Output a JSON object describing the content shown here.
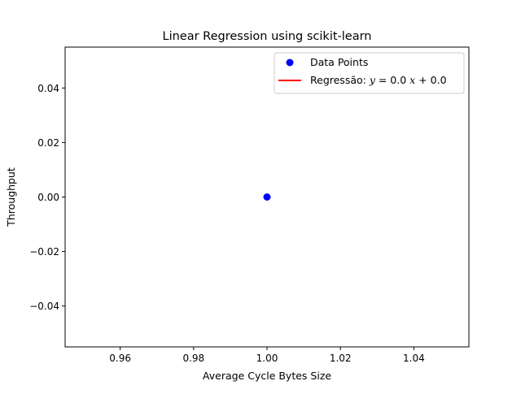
{
  "chart_data": {
    "type": "scatter",
    "title": "Linear Regression using scikit-learn",
    "xlabel": "Average Cycle Bytes Size",
    "ylabel": "Throughput",
    "xlim": [
      0.945,
      1.055
    ],
    "ylim": [
      -0.055,
      0.055
    ],
    "x_ticks": [
      0.96,
      0.98,
      1.0,
      1.02,
      1.04
    ],
    "x_tick_labels": [
      "0.96",
      "0.98",
      "1.00",
      "1.02",
      "1.04"
    ],
    "y_ticks": [
      -0.04,
      -0.02,
      0.0,
      0.02,
      0.04
    ],
    "y_tick_labels": [
      "−0.04",
      "−0.02",
      "0.00",
      "0.02",
      "0.04"
    ],
    "grid": false,
    "legend_position": "top-right",
    "series": [
      {
        "name": "Data Points",
        "kind": "scatter",
        "color": "#0000ff",
        "points": [
          {
            "x": 1.0,
            "y": 0.0
          }
        ]
      },
      {
        "name": "Regressão: y = 0.0 x + 0.0",
        "kind": "line",
        "color": "#ff0000",
        "slope": 0.0,
        "intercept": 0.0
      }
    ],
    "legend": {
      "scatter_label": "Data Points",
      "line_label_prefix": "Regressão: ",
      "line_label_math": {
        "y": "y",
        "eq": " = 0.0 ",
        "x": "x",
        "rest": " + 0.0"
      }
    }
  }
}
